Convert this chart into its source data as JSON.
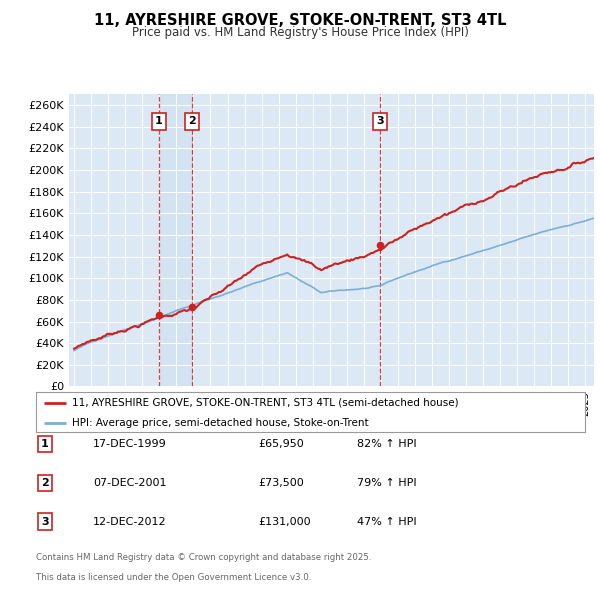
{
  "title": "11, AYRESHIRE GROVE, STOKE-ON-TRENT, ST3 4TL",
  "subtitle": "Price paid vs. HM Land Registry's House Price Index (HPI)",
  "plot_bg_color": "#dce9f5",
  "ylim": [
    0,
    270000
  ],
  "yticks": [
    0,
    20000,
    40000,
    60000,
    80000,
    100000,
    120000,
    140000,
    160000,
    180000,
    200000,
    220000,
    240000,
    260000
  ],
  "xstart": 1994.7,
  "xend": 2025.5,
  "transactions": [
    {
      "label": "1",
      "date_str": "17-DEC-1999",
      "year": 1999.96,
      "price": 65950
    },
    {
      "label": "2",
      "date_str": "07-DEC-2001",
      "year": 2001.93,
      "price": 73500
    },
    {
      "label": "3",
      "date_str": "12-DEC-2012",
      "year": 2012.95,
      "price": 131000
    }
  ],
  "legend_line1": "11, AYRESHIRE GROVE, STOKE-ON-TRENT, ST3 4TL (semi-detached house)",
  "legend_line2": "HPI: Average price, semi-detached house, Stoke-on-Trent",
  "footer_line1": "Contains HM Land Registry data © Crown copyright and database right 2025.",
  "footer_line2": "This data is licensed under the Open Government Licence v3.0.",
  "table_rows": [
    {
      "num": "1",
      "date": "17-DEC-1999",
      "price": "£65,950",
      "hpi": "82% ↑ HPI"
    },
    {
      "num": "2",
      "date": "07-DEC-2001",
      "price": "£73,500",
      "hpi": "79% ↑ HPI"
    },
    {
      "num": "3",
      "date": "12-DEC-2012",
      "price": "£131,000",
      "hpi": "47% ↑ HPI"
    }
  ],
  "hpi_color": "#7bafd4",
  "prop_color": "#cc2222",
  "marker_color": "#cc2222"
}
